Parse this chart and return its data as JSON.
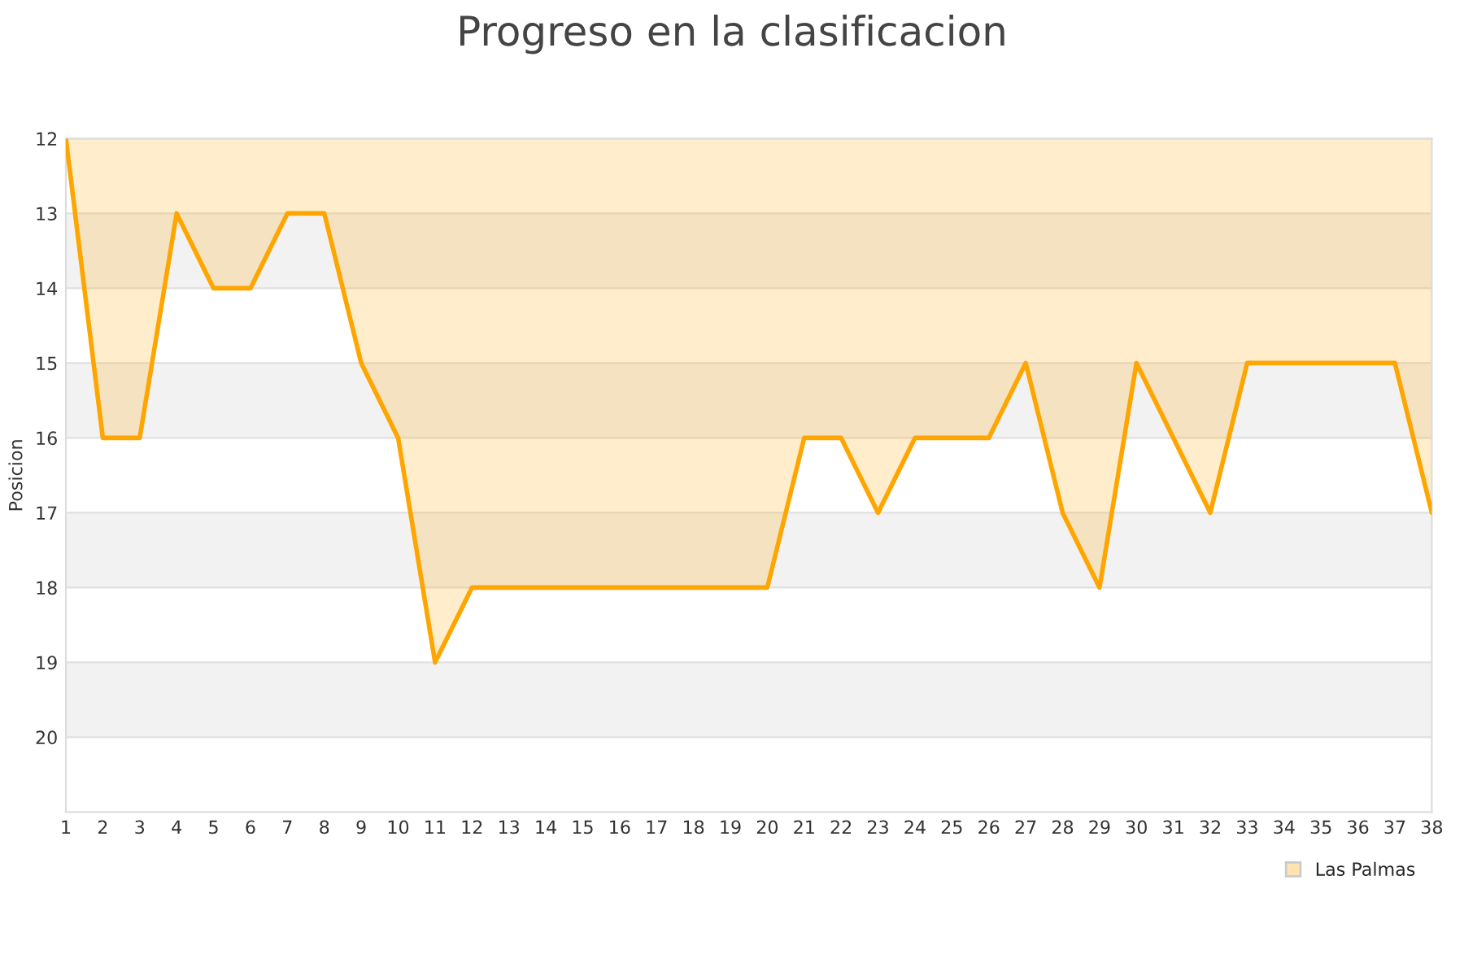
{
  "chart_data": {
    "type": "area",
    "title": "Progreso en la clasificacion",
    "ylabel": "Posicion",
    "x": [
      1,
      2,
      3,
      4,
      5,
      6,
      7,
      8,
      9,
      10,
      11,
      12,
      13,
      14,
      15,
      16,
      17,
      18,
      19,
      20,
      21,
      22,
      23,
      24,
      25,
      26,
      27,
      28,
      29,
      30,
      31,
      32,
      33,
      34,
      35,
      36,
      37,
      38
    ],
    "series": [
      {
        "name": "Las Palmas",
        "color": "#ffa500",
        "values": [
          12,
          16,
          16,
          13,
          14,
          14,
          13,
          13,
          15,
          16,
          19,
          18,
          18,
          18,
          18,
          18,
          18,
          18,
          18,
          18,
          16,
          16,
          17,
          16,
          16,
          16,
          15,
          17,
          18,
          15,
          16,
          17,
          15,
          15,
          15,
          15,
          15,
          17
        ]
      }
    ],
    "xlim": [
      1,
      38
    ],
    "xticks": [
      1,
      2,
      3,
      4,
      5,
      6,
      7,
      8,
      9,
      10,
      11,
      12,
      13,
      14,
      15,
      16,
      17,
      18,
      19,
      20,
      21,
      22,
      23,
      24,
      25,
      26,
      27,
      28,
      29,
      30,
      31,
      32,
      33,
      34,
      35,
      36,
      37,
      38
    ],
    "ylim": [
      21,
      12
    ],
    "yticks": [
      12,
      13,
      14,
      15,
      16,
      17,
      18,
      19,
      20
    ],
    "bands": [
      {
        "axis": "y",
        "from": 13,
        "to": 14,
        "color": "#f2f2f2"
      },
      {
        "axis": "y",
        "from": 15,
        "to": 16,
        "color": "#f2f2f2"
      },
      {
        "axis": "y",
        "from": 17,
        "to": 18,
        "color": "#f2f2f2"
      },
      {
        "axis": "y",
        "from": 19,
        "to": 20,
        "color": "#f2f2f2"
      }
    ],
    "grid": "y",
    "legend": "bottom right",
    "marker": "none",
    "line_style": "solid"
  }
}
